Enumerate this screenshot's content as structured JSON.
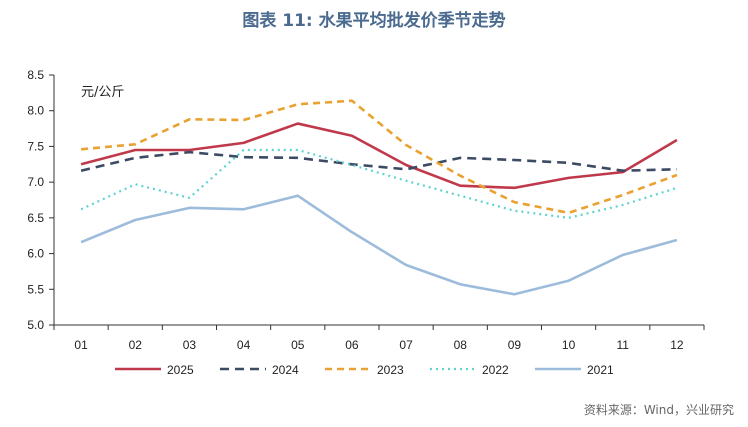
{
  "chart_data": {
    "type": "line",
    "title": "图表 11: 水果平均批发价季节走势",
    "unit_label": "元/公斤",
    "categories": [
      "01",
      "02",
      "03",
      "04",
      "05",
      "06",
      "07",
      "08",
      "09",
      "10",
      "11",
      "12"
    ],
    "ylim": [
      5.0,
      8.5
    ],
    "yticks": [
      "5.0",
      "5.5",
      "6.0",
      "6.5",
      "7.0",
      "7.5",
      "8.0",
      "8.5"
    ],
    "grid": false,
    "legend": "bottom",
    "series": [
      {
        "name": "2025",
        "color": "#c0394b",
        "dash": "solid",
        "values": [
          7.25,
          7.45,
          7.45,
          7.55,
          7.82,
          7.65,
          7.24,
          6.95,
          6.92,
          7.06,
          7.14,
          7.59
        ]
      },
      {
        "name": "2024",
        "color": "#3d4a63",
        "dash": "dashed",
        "values": [
          7.16,
          7.34,
          7.42,
          7.35,
          7.34,
          7.25,
          7.18,
          7.34,
          7.31,
          7.27,
          7.16,
          7.18
        ]
      },
      {
        "name": "2023",
        "color": "#e9a132",
        "dash": "shortdash",
        "values": [
          7.46,
          7.53,
          7.88,
          7.87,
          8.09,
          8.14,
          7.52,
          7.09,
          6.72,
          6.57,
          6.82,
          7.1
        ]
      },
      {
        "name": "2022",
        "color": "#5dd3cf",
        "dash": "dotted",
        "values": [
          6.62,
          6.97,
          6.78,
          7.45,
          7.45,
          7.24,
          7.02,
          6.81,
          6.6,
          6.5,
          6.68,
          6.92
        ]
      },
      {
        "name": "2021",
        "color": "#9dbcdb",
        "dash": "solid",
        "values": [
          6.16,
          6.47,
          6.64,
          6.62,
          6.81,
          6.3,
          5.84,
          5.57,
          5.43,
          5.62,
          5.98,
          6.19
        ]
      }
    ]
  },
  "source": "资料来源：Wind，兴业研究"
}
